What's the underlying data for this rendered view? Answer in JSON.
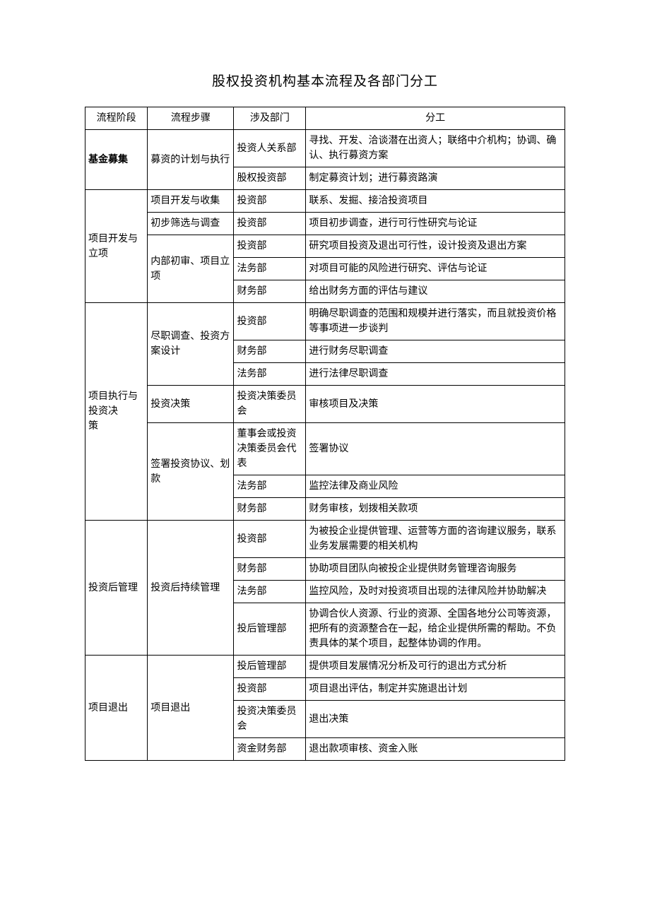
{
  "title": "股权投资机构基本流程及各部门分工",
  "columns": [
    "流程阶段",
    "流程步骤",
    "涉及部门",
    "分工"
  ],
  "column_align": [
    "left",
    "center",
    "left",
    "center"
  ],
  "rows": [
    {
      "stage": "基金募集",
      "stage_bold": true,
      "step": "募资的计划与执行",
      "dept": "投资人关系部",
      "work": "寻找、开发、洽谈潜在出资人；联络中介机构；协调、确认、执行募资方案",
      "stage_rowspan": 2,
      "step_rowspan": 2
    },
    {
      "dept": "股权投资部",
      "work": "制定募资计划；进行募资路演"
    },
    {
      "stage": "项目开发与立项",
      "step": "项目开发与收集",
      "dept": "投资部",
      "work": "联系、发掘、接洽投资项目",
      "stage_rowspan": 5
    },
    {
      "step": "初步筛选与调查",
      "dept": "投资部",
      "work": "项目初步调查，进行可行性研究与论证"
    },
    {
      "step": "内部初审、项目立项",
      "step_rowspan": 3,
      "dept": "投资部",
      "work": "研究项目投资及退出可行性，设计投资及退出方案"
    },
    {
      "dept": "法务部",
      "work": "对项目可能的风险进行研究、评估与论证"
    },
    {
      "dept": "财务部",
      "work": "给出财务方面的评估与建议"
    },
    {
      "stage": "项目执行与投资决\n策",
      "stage_rowspan": 7,
      "step": "尽职调查、投资方案设计",
      "step_rowspan": 3,
      "dept": "投资部",
      "work": "明确尽职调查的范围和规模并进行落实，而且就投资价格等事项进一步谈判"
    },
    {
      "dept": "财务部",
      "work": "进行财务尽职调查"
    },
    {
      "dept": "法务部",
      "work": "进行法律尽职调查"
    },
    {
      "step": "投资决策",
      "dept": "投资决策委员会",
      "work": "审核项目及决策"
    },
    {
      "step": "签署投资协议、划款",
      "step_rowspan": 3,
      "dept": "董事会或投资决策委员会代表",
      "work": "签署协议"
    },
    {
      "dept": "法务部",
      "work": "监控法律及商业风险"
    },
    {
      "dept": "财务部",
      "work": "财务审核，划拨相关款项"
    },
    {
      "stage": "投资后管理",
      "stage_rowspan": 4,
      "step": "投资后持续管理",
      "step_rowspan": 4,
      "dept": "投资部",
      "work": "为被投企业提供管理、运营等方面的咨询建议服务，联系业务发展需要的相关机构"
    },
    {
      "dept": "财务部",
      "work": "协助项目团队向被投企业提供财务管理咨询服务"
    },
    {
      "dept": "法务部",
      "work": "监控风险，及时对投资项目出现的法律风险并协助解决"
    },
    {
      "dept": "投后管理部",
      "work": "协调合伙人资源、行业的资源、全国各地分公司等资源，把所有的资源整合在一起，给企业提供所需的帮助。不负责具体的某个项目，起整体协调的作用。"
    },
    {
      "stage": "项目退出",
      "stage_rowspan": 4,
      "step": "项目退出",
      "step_rowspan": 4,
      "dept": "投后管理部",
      "work": "提供项目发展情况分析及可行的退出方式分析"
    },
    {
      "dept": "投资部",
      "work": "项目退出评估，制定并实施退出计划"
    },
    {
      "dept": "投资决策委员会",
      "work": "退出决策"
    },
    {
      "dept": "资金财务部",
      "work": "退出款项审核、资金入账"
    }
  ]
}
